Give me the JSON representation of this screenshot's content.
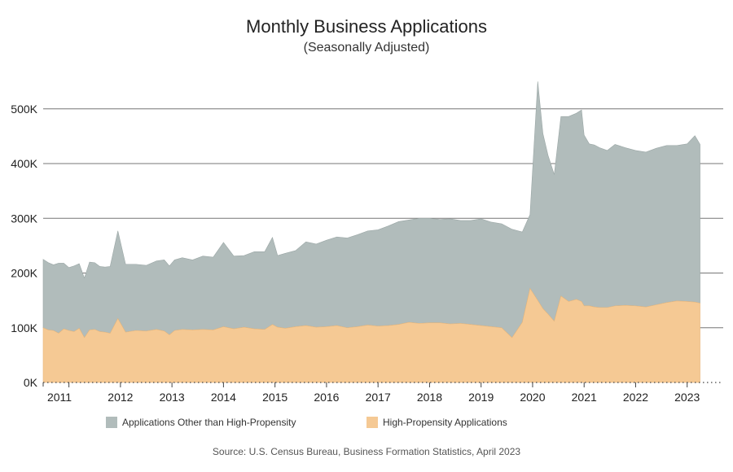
{
  "chart_data": {
    "type": "area",
    "title": "Monthly Business Applications",
    "subtitle": "(Seasonally Adjusted)",
    "source": "Source: U.S. Census Bureau, Business Formation Statistics, April 2023",
    "stacked": true,
    "ylim": [
      0,
      580000
    ],
    "y_ticks": [
      0,
      100000,
      200000,
      300000,
      400000,
      500000
    ],
    "y_tick_labels": [
      "0K",
      "100K",
      "200K",
      "300K",
      "400K",
      "500K"
    ],
    "x_tick_labels": [
      "2011",
      "2012",
      "2013",
      "2014",
      "2015",
      "2016",
      "2017",
      "2018",
      "2019",
      "2020",
      "2021",
      "2022",
      "2023"
    ],
    "grid": true,
    "legend_position": "bottom",
    "x": [
      2010.5,
      2010.6,
      2010.7,
      2010.8,
      2010.9,
      2011.0,
      2011.1,
      2011.2,
      2011.3,
      2011.4,
      2011.5,
      2011.6,
      2011.7,
      2011.8,
      2011.95,
      2012.1,
      2012.3,
      2012.5,
      2012.7,
      2012.85,
      2012.95,
      2013.05,
      2013.2,
      2013.4,
      2013.6,
      2013.8,
      2014.0,
      2014.2,
      2014.4,
      2014.6,
      2014.8,
      2014.95,
      2015.05,
      2015.2,
      2015.4,
      2015.6,
      2015.8,
      2016.0,
      2016.2,
      2016.4,
      2016.6,
      2016.8,
      2017.0,
      2017.2,
      2017.4,
      2017.6,
      2017.8,
      2018.0,
      2018.2,
      2018.4,
      2018.6,
      2018.8,
      2019.0,
      2019.2,
      2019.4,
      2019.6,
      2019.8,
      2019.95,
      2020.1,
      2020.2,
      2020.3,
      2020.42,
      2020.55,
      2020.7,
      2020.85,
      2020.95,
      2021.0,
      2021.1,
      2021.2,
      2021.3,
      2021.45,
      2021.6,
      2021.8,
      2022.0,
      2022.2,
      2022.4,
      2022.6,
      2022.8,
      2023.0,
      2023.15,
      2023.25
    ],
    "series": [
      {
        "name": "High-Propensity Applications",
        "color": "#f5c994",
        "values": [
          100000,
          96000,
          95000,
          90000,
          98000,
          95000,
          93000,
          99000,
          82000,
          96000,
          97000,
          93000,
          92000,
          90000,
          117000,
          92000,
          95000,
          94000,
          97000,
          94000,
          87000,
          95000,
          97000,
          96000,
          97000,
          96000,
          102000,
          98000,
          101000,
          98000,
          97000,
          106000,
          101000,
          99000,
          102000,
          104000,
          101000,
          102000,
          104000,
          100000,
          102000,
          105000,
          103000,
          104000,
          106000,
          110000,
          108000,
          109000,
          109000,
          107000,
          108000,
          106000,
          104000,
          102000,
          100000,
          82000,
          110000,
          172000,
          150000,
          135000,
          125000,
          112000,
          158000,
          148000,
          152000,
          148000,
          140000,
          140000,
          138000,
          137000,
          137000,
          140000,
          141000,
          140000,
          138000,
          142000,
          146000,
          149000,
          148000,
          147000,
          145000
        ]
      },
      {
        "name": "Applications Other than High-Propensity",
        "color": "#b1bcbb",
        "values": [
          125000,
          123000,
          120000,
          128000,
          120000,
          115000,
          120000,
          118000,
          109000,
          124000,
          122000,
          119000,
          119000,
          122000,
          160000,
          124000,
          121000,
          120000,
          125000,
          130000,
          126000,
          129000,
          131000,
          128000,
          134000,
          133000,
          154000,
          133000,
          131000,
          141000,
          142000,
          159000,
          131000,
          137000,
          139000,
          153000,
          152000,
          158000,
          162000,
          164000,
          168000,
          172000,
          176000,
          182000,
          188000,
          187000,
          192000,
          191000,
          189000,
          192000,
          188000,
          190000,
          195000,
          191000,
          190000,
          198000,
          165000,
          135000,
          400000,
          320000,
          290000,
          268000,
          328000,
          338000,
          340000,
          350000,
          312000,
          296000,
          296000,
          292000,
          287000,
          295000,
          288000,
          284000,
          283000,
          286000,
          287000,
          284000,
          288000,
          304000,
          290000
        ]
      }
    ]
  }
}
